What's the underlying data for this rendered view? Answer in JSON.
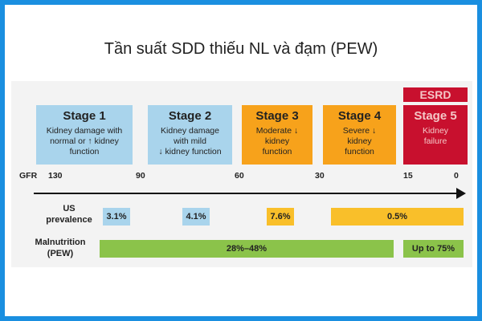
{
  "title": "Tần suất SDD thiếu NL và đạm (PEW)",
  "esrd_label": "ESRD",
  "stages": [
    {
      "name": "Stage 1",
      "desc": [
        "Kidney damage with",
        "normal or ↑ kidney",
        "function"
      ]
    },
    {
      "name": "Stage 2",
      "desc": [
        "Kidney damage",
        "with mild",
        "↓ kidney function"
      ]
    },
    {
      "name": "Stage 3",
      "desc": [
        "Moderate ↓",
        "kidney",
        "function"
      ]
    },
    {
      "name": "Stage 4",
      "desc": [
        "Severe ↓",
        "kidney",
        "function"
      ]
    },
    {
      "name": "Stage 5",
      "desc": [
        "Kidney",
        "failure"
      ]
    }
  ],
  "gfr": {
    "label": "GFR",
    "ticks": [
      "130",
      "90",
      "60",
      "30",
      "15",
      "0"
    ]
  },
  "us_prevalence": {
    "label": [
      "US",
      "prevalence"
    ],
    "values": [
      "3.1%",
      "4.1%",
      "7.6%",
      "0.5%"
    ]
  },
  "malnutrition": {
    "label": [
      "Malnutrition",
      "(PEW)"
    ],
    "values": [
      "28%–48%",
      "Up to 75%"
    ]
  },
  "colors": {
    "light_blue": "#a9d4ec",
    "orange": "#f7a21b",
    "red": "#c8102e",
    "yellow": "#f9bf2a",
    "green": "#8bc34a",
    "border_blue": "#1a8fe0"
  }
}
